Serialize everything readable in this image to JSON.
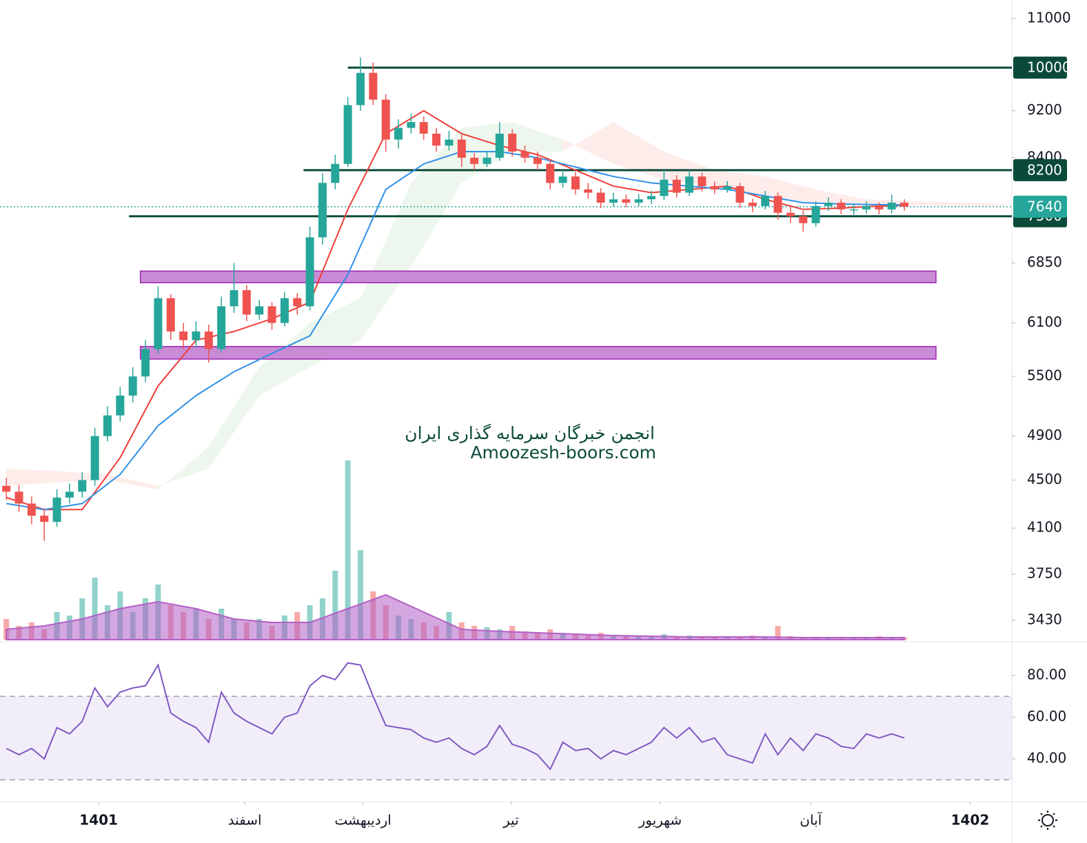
{
  "chart_data": {
    "type": "candlestick",
    "watermark": [
      "انجمن خبرگان سرمایه گذاری ایران",
      "Amoozesh-boors.com"
    ],
    "log_scale": true,
    "xlim": [
      -0.5,
      79.5
    ],
    "ylim": [
      3295,
      11400
    ],
    "yticks": [
      11000,
      9200,
      8400,
      6850,
      6100,
      5500,
      4900,
      4500,
      4100,
      3750,
      3430
    ],
    "xticks": [
      {
        "value": 7.3,
        "label": "1401"
      },
      {
        "value": 18.85,
        "label": "اسفند"
      },
      {
        "value": 28.2,
        "label": "اردیبهشت"
      },
      {
        "value": 39.9,
        "label": "تیر"
      },
      {
        "value": 51.7,
        "label": "شهریور"
      },
      {
        "value": 63.6,
        "label": "آبان"
      },
      {
        "value": 76.2,
        "label": "1402"
      }
    ],
    "up_color": "#26a69a",
    "down_color": "#ef5350",
    "candles": {
      "open": [
        4450,
        4400,
        4300,
        4200,
        4150,
        4350,
        4400,
        4500,
        4900,
        5100,
        5300,
        5500,
        5800,
        6400,
        6000,
        5900,
        6000,
        5800,
        6300,
        6500,
        6200,
        6300,
        6100,
        6400,
        6300,
        7200,
        8000,
        8300,
        9300,
        9900,
        9400,
        8700,
        8900,
        9000,
        8800,
        8600,
        8700,
        8400,
        8300,
        8400,
        8800,
        8500,
        8400,
        8300,
        8000,
        8100,
        7900,
        7850,
        7700,
        7750,
        7700,
        7750,
        7800,
        8050,
        7850,
        8100,
        7950,
        7900,
        7950,
        7700,
        7650,
        7800,
        7550,
        7500,
        7400,
        7650,
        7700,
        7600,
        7600,
        7650,
        7600,
        7700
      ],
      "high": [
        4520,
        4460,
        4360,
        4260,
        4420,
        4470,
        4570,
        4980,
        5190,
        5390,
        5600,
        5900,
        6550,
        6450,
        6100,
        6120,
        6080,
        6420,
        6850,
        6560,
        6380,
        6350,
        6480,
        6460,
        7350,
        8150,
        8450,
        9450,
        10200,
        10100,
        9500,
        9050,
        9150,
        9100,
        8900,
        8850,
        8780,
        8480,
        8500,
        9000,
        8880,
        8600,
        8500,
        8360,
        8200,
        8170,
        8000,
        7920,
        7850,
        7820,
        7830,
        7880,
        8200,
        8120,
        8200,
        8160,
        8020,
        8030,
        8000,
        7760,
        7880,
        7850,
        7650,
        7580,
        7720,
        7780,
        7750,
        7680,
        7720,
        7700,
        7820,
        7750
      ],
      "low": [
        4330,
        4230,
        4130,
        4000,
        4110,
        4300,
        4350,
        4450,
        4850,
        5040,
        5230,
        5440,
        5750,
        5900,
        5800,
        5820,
        5650,
        5760,
        6220,
        6120,
        6140,
        6020,
        6060,
        6200,
        6250,
        7100,
        7900,
        8250,
        9200,
        9300,
        8500,
        8550,
        8800,
        8700,
        8500,
        8520,
        8250,
        8200,
        8250,
        8350,
        8420,
        8320,
        8200,
        7900,
        7930,
        7820,
        7760,
        7620,
        7640,
        7630,
        7650,
        7680,
        7740,
        7780,
        7800,
        7870,
        7830,
        7850,
        7620,
        7560,
        7600,
        7450,
        7400,
        7280,
        7350,
        7580,
        7530,
        7520,
        7540,
        7530,
        7540,
        7580
      ],
      "close": [
        4400,
        4300,
        4200,
        4150,
        4350,
        4400,
        4500,
        4900,
        5100,
        5300,
        5500,
        5800,
        6400,
        6000,
        5900,
        6000,
        5800,
        6300,
        6500,
        6200,
        6300,
        6100,
        6400,
        6300,
        7200,
        8000,
        8300,
        9300,
        9900,
        9400,
        8700,
        8900,
        9000,
        8800,
        8600,
        8700,
        8400,
        8300,
        8400,
        8800,
        8500,
        8400,
        8300,
        8000,
        8100,
        7900,
        7850,
        7700,
        7750,
        7700,
        7750,
        7800,
        8050,
        7850,
        8100,
        7950,
        7900,
        7950,
        7700,
        7650,
        7800,
        7550,
        7500,
        7400,
        7650,
        7700,
        7600,
        7600,
        7650,
        7600,
        7700,
        7640
      ]
    },
    "ma_x": [
      0,
      3,
      6,
      9,
      12,
      15,
      18,
      21,
      24,
      27,
      30,
      33,
      36,
      39,
      42,
      45,
      48,
      51,
      54,
      57,
      60,
      63,
      66,
      69,
      71
    ],
    "moving_averages": [
      {
        "color": "#ef3b36",
        "values": [
          4350,
          4250,
          4250,
          4700,
          5400,
          5900,
          6000,
          6150,
          6350,
          7600,
          8800,
          9200,
          8800,
          8600,
          8450,
          8200,
          7950,
          7850,
          7900,
          7950,
          7750,
          7600,
          7620,
          7650,
          7660
        ]
      },
      {
        "color": "#2f8fe8",
        "values": [
          4300,
          4250,
          4300,
          4550,
          5000,
          5300,
          5550,
          5750,
          5950,
          6700,
          7900,
          8300,
          8500,
          8500,
          8400,
          8250,
          8100,
          8000,
          7950,
          7900,
          7800,
          7700,
          7680,
          7670,
          7665
        ]
      }
    ],
    "cloud": {
      "x": [
        0,
        4,
        8,
        12,
        16,
        20,
        24,
        28,
        32,
        36,
        40,
        44,
        48,
        52,
        56,
        60,
        64,
        68,
        72,
        76,
        79
      ],
      "span_a": [
        4450,
        4480,
        4500,
        4420,
        4800,
        5600,
        6100,
        6400,
        8000,
        8900,
        9000,
        8700,
        8300,
        8050,
        7950,
        7800,
        7700,
        7650,
        7660,
        7650,
        7650
      ],
      "span_b": [
        4600,
        4580,
        4550,
        4450,
        4600,
        5300,
        5600,
        5900,
        6800,
        8000,
        8500,
        8500,
        9000,
        8500,
        8200,
        8100,
        7900,
        7750,
        7720,
        7700,
        7680
      ],
      "up_color": "#4caf50",
      "down_color": "#f44336"
    },
    "levels": [
      {
        "value": 10000,
        "from": 27.0
      },
      {
        "value": 8200,
        "from": 23.5
      },
      {
        "value": 7500,
        "from": 9.7
      }
    ],
    "level_color": "#0b4a3a",
    "last_price": 7640,
    "zones": [
      {
        "from": 10.6,
        "to": 73.5,
        "low": 6594,
        "high": 6745
      },
      {
        "from": 10.6,
        "to": 73.5,
        "low": 5688,
        "high": 5828
      }
    ],
    "zone_color": "#c98ad6",
    "volume": [
      30,
      20,
      25,
      15,
      40,
      35,
      60,
      90,
      50,
      70,
      40,
      60,
      80,
      50,
      40,
      45,
      30,
      45,
      30,
      25,
      30,
      20,
      35,
      40,
      50,
      60,
      100,
      260,
      130,
      70,
      50,
      35,
      30,
      25,
      20,
      40,
      25,
      20,
      18,
      15,
      20,
      12,
      10,
      15,
      10,
      8,
      8,
      10,
      6,
      5,
      6,
      6,
      8,
      5,
      6,
      5,
      4,
      5,
      4,
      6,
      4,
      20,
      5,
      4,
      4,
      3,
      3,
      4,
      3,
      5,
      4,
      3
    ],
    "volume_ma": [
      15,
      20,
      30,
      45,
      55,
      45,
      30,
      25,
      25,
      45,
      65,
      40,
      15,
      12,
      10,
      8,
      6,
      5,
      4,
      4,
      4,
      3,
      3,
      3,
      3
    ],
    "volume_color": "#b35fc6",
    "rsi": {
      "ylim": [
        20.5,
        95.5
      ],
      "yticks": [
        {
          "value": 80,
          "label": "80.00"
        },
        {
          "value": 60,
          "label": "60.00"
        },
        {
          "value": 40,
          "label": "40.00"
        }
      ],
      "bands": [
        30,
        70
      ],
      "color": "#7e57c2",
      "values": [
        45,
        42,
        45,
        40,
        55,
        52,
        58,
        74,
        65,
        72,
        74,
        75,
        85,
        62,
        58,
        55,
        48,
        72,
        62,
        58,
        55,
        52,
        60,
        62,
        75,
        80,
        78,
        86,
        85,
        70,
        56,
        55,
        54,
        50,
        48,
        50,
        45,
        42,
        46,
        56,
        47,
        45,
        42,
        35,
        48,
        44,
        45,
        40,
        44,
        42,
        45,
        48,
        55,
        50,
        55,
        48,
        50,
        42,
        40,
        38,
        52,
        42,
        50,
        44,
        52,
        50,
        46,
        45,
        52,
        50,
        52,
        50
      ]
    }
  }
}
